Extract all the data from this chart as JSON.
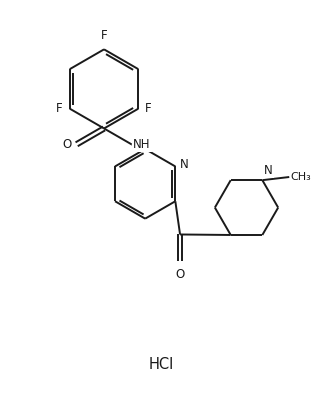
{
  "background_color": "#ffffff",
  "line_color": "#1a1a1a",
  "line_width": 1.4,
  "font_size": 8.5,
  "hcl_font_size": 10.5,
  "fig_width": 3.22,
  "fig_height": 3.93,
  "dpi": 100,
  "xlim": [
    0,
    10
  ],
  "ylim": [
    0,
    12.2
  ]
}
